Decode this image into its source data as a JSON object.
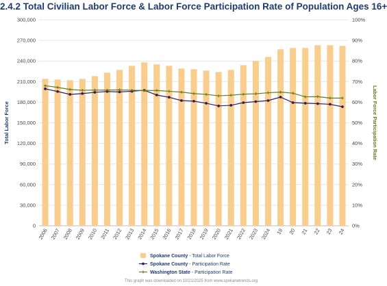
{
  "chart_data": {
    "type": "bar",
    "title": "2.4.2 Total Civilian Labor Force & Labor Force Participation Rate of Population Ages 16+",
    "categories": [
      "2006",
      "2007",
      "2008",
      "2009",
      "2010",
      "2011",
      "2012",
      "2013",
      "2014",
      "2015",
      "2016",
      "2017",
      "2018",
      "2019",
      "2020",
      "2021",
      "2022",
      "2023",
      "2024",
      "19",
      "20",
      "21",
      "22",
      "23",
      "24"
    ],
    "series": [
      {
        "name": "Spokane County - Total Labor Force",
        "kind": "bar",
        "axis": "left",
        "color": "#f9cd8d",
        "values": [
          214000,
          213000,
          212000,
          214000,
          218000,
          223000,
          227000,
          233000,
          238000,
          235000,
          233000,
          229000,
          228000,
          226000,
          224000,
          227000,
          234000,
          240000,
          246000,
          257000,
          259000,
          259000,
          263000,
          263000,
          262000
        ]
      },
      {
        "name": "Spokane County - Participation Rate",
        "kind": "line",
        "axis": "right",
        "color": "#2c1f5e",
        "values": [
          66.5,
          65.2,
          63.8,
          64.2,
          64.8,
          65.2,
          65.0,
          65.3,
          65.8,
          63.5,
          62.4,
          60.8,
          60.5,
          59.5,
          58.2,
          58.5,
          59.8,
          60.3,
          60.8,
          62.5,
          59.8,
          59.5,
          59.3,
          59.0,
          57.8
        ]
      },
      {
        "name": "Washington State - Participation Rate",
        "kind": "line",
        "axis": "right",
        "color": "#5f7a1f",
        "values": [
          68.0,
          67.2,
          66.2,
          65.8,
          65.9,
          65.9,
          66.0,
          65.8,
          65.7,
          65.7,
          65.3,
          64.9,
          64.2,
          63.8,
          63.1,
          63.4,
          63.9,
          64.1,
          64.6,
          64.9,
          64.4,
          62.6,
          62.7,
          62.0,
          62.0
        ]
      }
    ],
    "ylabel": "Total Labor Force",
    "ylabel_right": "Labor Force Participation Rate",
    "ylim": [
      0,
      300000
    ],
    "ylim_right": [
      0,
      100
    ],
    "y_ticks": [
      "0",
      "30,000",
      "60,000",
      "90,000",
      "120,000",
      "150,000",
      "180,000",
      "210,000",
      "240,000",
      "270,000",
      "300,000"
    ],
    "y_ticks_right": [
      "0%",
      "10%",
      "20%",
      "30%",
      "40%",
      "50%",
      "60%",
      "70%",
      "80%",
      "90%",
      "100%"
    ],
    "grid": true,
    "legend_position": "bottom",
    "legend": [
      {
        "prefix": "Spokane County",
        "suffix": " - Total Labor Force",
        "series": 0
      },
      {
        "prefix": "Spokane County",
        "suffix": " - Participation Rate",
        "series": 1
      },
      {
        "prefix": "Washington State",
        "suffix": " - Participation Rate",
        "series": 2
      }
    ],
    "footer": "This graph was downloaded on 10/21/2025 from www.spokanetrends.org"
  }
}
